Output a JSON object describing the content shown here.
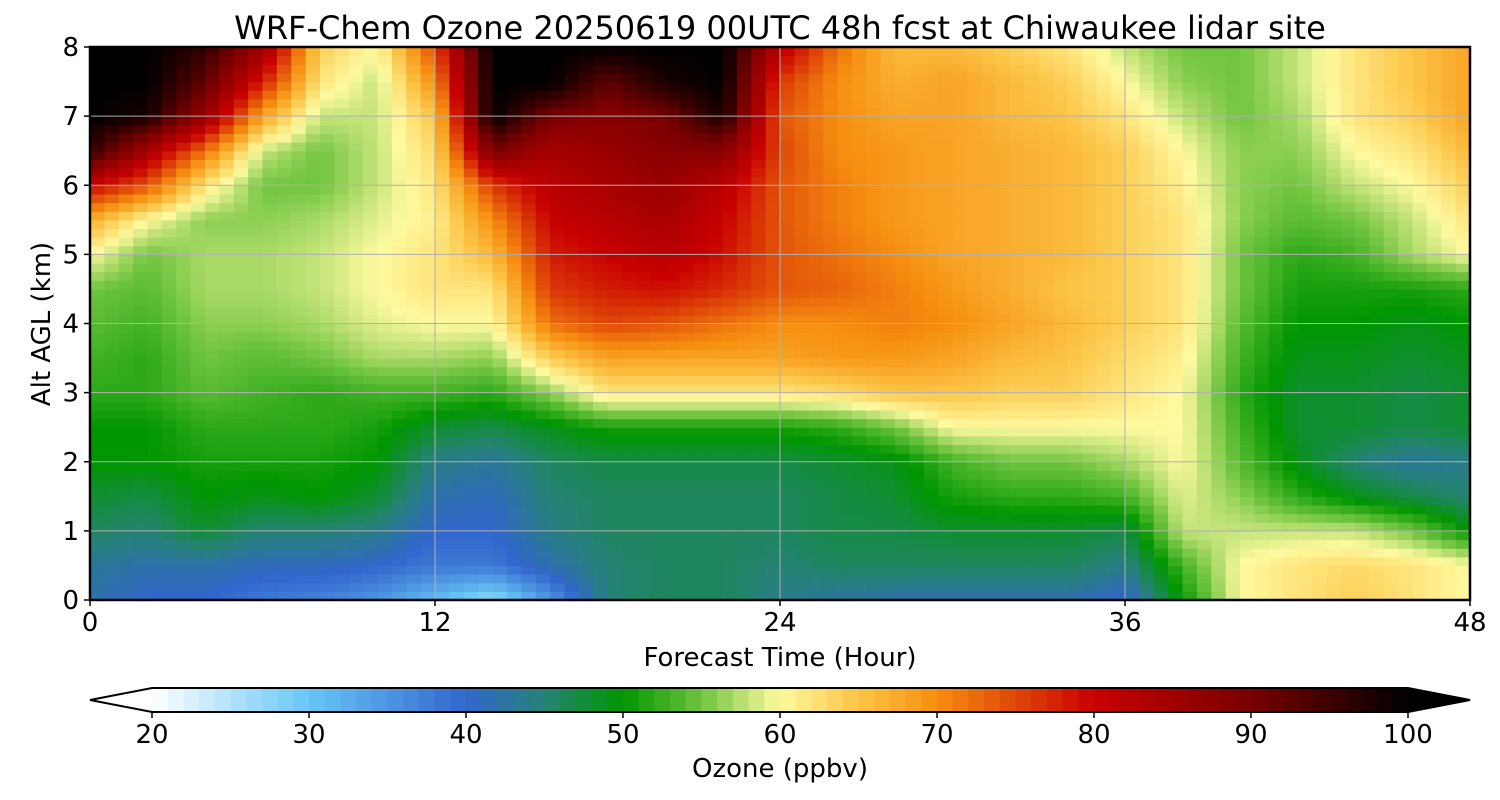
{
  "chart_data": {
    "type": "heatmap",
    "title": "WRF-Chem Ozone  20250619 00UTC 48h fcst at Chiwaukee lidar site",
    "xlabel": "Forecast Time (Hour)",
    "ylabel": "Alt AGL (km)",
    "xlim": [
      0,
      48
    ],
    "ylim": [
      0,
      8
    ],
    "xticks": [
      "0",
      "12",
      "24",
      "36",
      "48"
    ],
    "yticks": [
      "0",
      "1",
      "2",
      "3",
      "4",
      "5",
      "6",
      "7",
      "8"
    ],
    "grid": true,
    "x": [
      0,
      2,
      4,
      6,
      8,
      10,
      12,
      14,
      16,
      18,
      20,
      22,
      24,
      26,
      28,
      30,
      32,
      34,
      36,
      38,
      40,
      42,
      44,
      46,
      48
    ],
    "y": [
      0,
      0.5,
      1,
      1.5,
      2,
      2.5,
      3,
      3.5,
      4,
      4.5,
      5,
      5.5,
      6,
      6.5,
      7,
      7.5,
      8
    ],
    "z": [
      [
        42,
        40,
        40,
        38,
        37,
        35,
        31,
        27,
        35,
        45,
        46,
        46,
        44,
        43,
        42,
        42,
        42,
        42,
        40,
        50,
        60,
        62,
        64,
        62,
        60
      ],
      [
        43,
        42,
        42,
        41,
        41,
        40,
        38,
        38,
        42,
        45,
        46,
        46,
        45,
        46,
        46,
        46,
        46,
        46,
        44,
        53,
        60,
        62,
        63,
        62,
        60
      ],
      [
        46,
        45,
        48,
        45,
        45,
        44,
        40,
        40,
        44,
        46,
        46,
        46,
        46,
        47,
        47,
        48,
        48,
        48,
        47,
        58,
        58,
        58,
        58,
        55,
        50
      ],
      [
        48,
        47,
        50,
        49,
        50,
        48,
        42,
        41,
        45,
        46,
        46,
        46,
        46,
        47,
        48,
        51,
        52,
        52,
        53,
        59,
        56,
        52,
        49,
        47,
        45
      ],
      [
        50,
        50,
        51,
        51,
        51,
        50,
        44,
        43,
        46,
        47,
        47,
        47,
        47,
        48,
        49,
        53,
        55,
        55,
        57,
        60,
        54,
        49,
        45,
        43,
        44
      ],
      [
        50,
        50,
        52,
        52,
        52,
        51,
        48,
        47,
        49,
        51,
        51,
        51,
        51,
        52,
        55,
        60,
        60,
        60,
        60,
        60,
        53,
        48,
        48,
        47,
        48
      ],
      [
        52,
        52,
        54,
        53,
        52,
        53,
        53,
        52,
        56,
        62,
        62,
        62,
        62,
        63,
        65,
        65,
        64,
        64,
        62,
        60,
        52,
        48,
        48,
        47,
        48
      ],
      [
        53,
        52,
        55,
        54,
        55,
        57,
        57,
        56,
        64,
        68,
        68,
        68,
        68,
        69,
        69,
        68,
        66,
        65,
        63,
        61,
        53,
        49,
        49,
        48,
        49
      ],
      [
        54,
        53,
        56,
        56,
        57,
        59,
        60,
        60,
        72,
        75,
        74,
        72,
        70,
        70,
        71,
        70,
        68,
        66,
        64,
        62,
        54,
        50,
        50,
        49,
        50
      ],
      [
        55,
        54,
        57,
        57,
        58,
        60,
        62,
        62,
        76,
        78,
        79,
        77,
        74,
        73,
        71,
        69,
        67,
        65,
        64,
        62,
        55,
        51,
        51,
        51,
        52
      ],
      [
        60,
        55,
        57,
        57,
        58,
        60,
        62,
        66,
        78,
        80,
        82,
        79,
        74,
        72,
        70,
        68,
        67,
        66,
        64,
        62,
        55,
        52,
        53,
        57,
        60
      ],
      [
        67,
        60,
        56,
        56,
        57,
        59,
        61,
        70,
        80,
        82,
        84,
        80,
        74,
        71,
        69,
        68,
        67,
        66,
        64,
        62,
        56,
        54,
        55,
        58,
        62
      ],
      [
        80,
        74,
        62,
        55,
        55,
        58,
        62,
        76,
        82,
        84,
        86,
        82,
        74,
        71,
        69,
        68,
        67,
        66,
        64,
        61,
        56,
        55,
        58,
        60,
        64
      ],
      [
        96,
        84,
        72,
        58,
        55,
        58,
        63,
        90,
        84,
        86,
        88,
        88,
        75,
        70,
        69,
        68,
        67,
        66,
        64,
        60,
        56,
        56,
        60,
        62,
        66
      ],
      [
        100,
        98,
        86,
        68,
        58,
        58,
        65,
        100,
        90,
        88,
        90,
        98,
        74,
        70,
        68,
        68,
        66,
        65,
        62,
        58,
        55,
        57,
        62,
        64,
        68
      ],
      [
        100,
        100,
        92,
        78,
        62,
        58,
        70,
        100,
        100,
        92,
        98,
        100,
        76,
        70,
        67,
        68,
        66,
        64,
        60,
        56,
        55,
        58,
        62,
        65,
        68
      ],
      [
        100,
        100,
        96,
        86,
        64,
        60,
        75,
        100,
        100,
        100,
        100,
        100,
        82,
        72,
        66,
        66,
        64,
        62,
        58,
        55,
        55,
        58,
        62,
        65,
        68
      ]
    ],
    "colorbar": {
      "label": "Ozone  (ppbv)",
      "ticks": [
        "20",
        "30",
        "40",
        "50",
        "60",
        "70",
        "80",
        "90",
        "100"
      ],
      "range": [
        20,
        100
      ],
      "extend": "both"
    }
  }
}
